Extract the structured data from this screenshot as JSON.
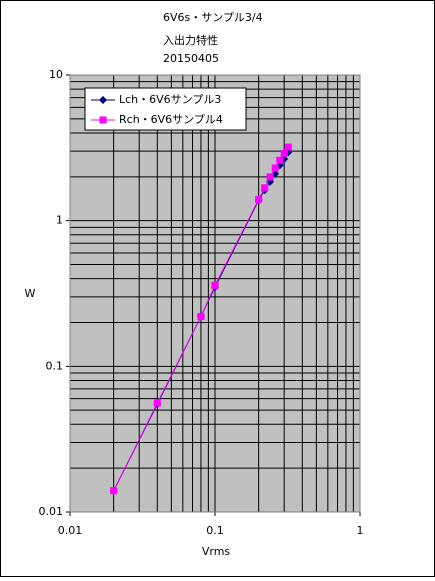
{
  "chart_data": {
    "type": "line",
    "title": [
      "6V6s・サンプル3/4",
      "入出力特性",
      "20150405"
    ],
    "x_label": "Vrms",
    "y_label": "W",
    "xlog": true,
    "ylog": true,
    "grid": true,
    "minor_grid": true,
    "legend": "top-left",
    "xlim": [
      0.01,
      1
    ],
    "ylim": [
      0.01,
      10
    ],
    "xticks": [
      0.01,
      0.1,
      1
    ],
    "yticks": [
      0.01,
      0.1,
      1,
      10
    ],
    "series": [
      {
        "name": "Lch・6V6サンプル3",
        "color": "#000080",
        "marker": "diamond",
        "x": [
          0.02,
          0.04,
          0.08,
          0.1,
          0.2,
          0.22,
          0.24,
          0.26,
          0.28,
          0.3,
          0.32
        ],
        "values": [
          0.014,
          0.055,
          0.22,
          0.35,
          1.38,
          1.62,
          1.85,
          2.1,
          2.4,
          2.65,
          2.95
        ]
      },
      {
        "name": "Rch・6V6サンプル4",
        "color": "#ff00ff",
        "marker": "square",
        "x": [
          0.02,
          0.04,
          0.08,
          0.1,
          0.2,
          0.22,
          0.24,
          0.26,
          0.28,
          0.3,
          0.32
        ],
        "values": [
          0.014,
          0.056,
          0.22,
          0.36,
          1.4,
          1.68,
          2.0,
          2.3,
          2.6,
          2.9,
          3.2
        ]
      }
    ]
  }
}
